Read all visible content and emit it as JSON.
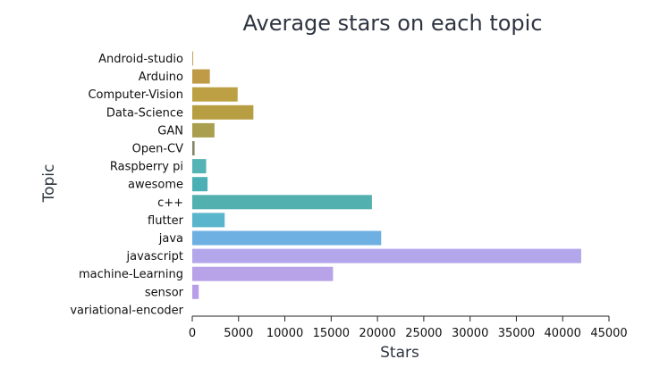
{
  "chart_data": {
    "type": "bar",
    "orientation": "horizontal",
    "title": "Average stars on each topic",
    "xlabel": "Stars",
    "ylabel": "Topic",
    "xlim": [
      0,
      45000
    ],
    "xticks": [
      0,
      5000,
      10000,
      15000,
      20000,
      25000,
      30000,
      35000,
      40000,
      45000
    ],
    "categories": [
      "Android-studio",
      "Arduino",
      "Computer-Vision",
      "Data-Science",
      "GAN",
      "Open-CV",
      "Raspberry pi",
      "awesome",
      "c++",
      "flutter",
      "java",
      "javascript",
      "machine-Learning",
      "sensor",
      "variational-encoder"
    ],
    "values": [
      100,
      1900,
      4900,
      6600,
      2400,
      250,
      1500,
      1650,
      19400,
      3500,
      20400,
      42000,
      15200,
      700,
      0
    ],
    "colors": [
      "#c5a85f",
      "#c09b47",
      "#bda044",
      "#b79e43",
      "#a99f4f",
      "#858764",
      "#55b2b5",
      "#4bb0b5",
      "#52b0ae",
      "#58b5cc",
      "#6fb0e3",
      "#b4a6eb",
      "#b8a2e8",
      "#b89ee6",
      "#b89ee6"
    ],
    "grid": false,
    "legend": "none"
  }
}
